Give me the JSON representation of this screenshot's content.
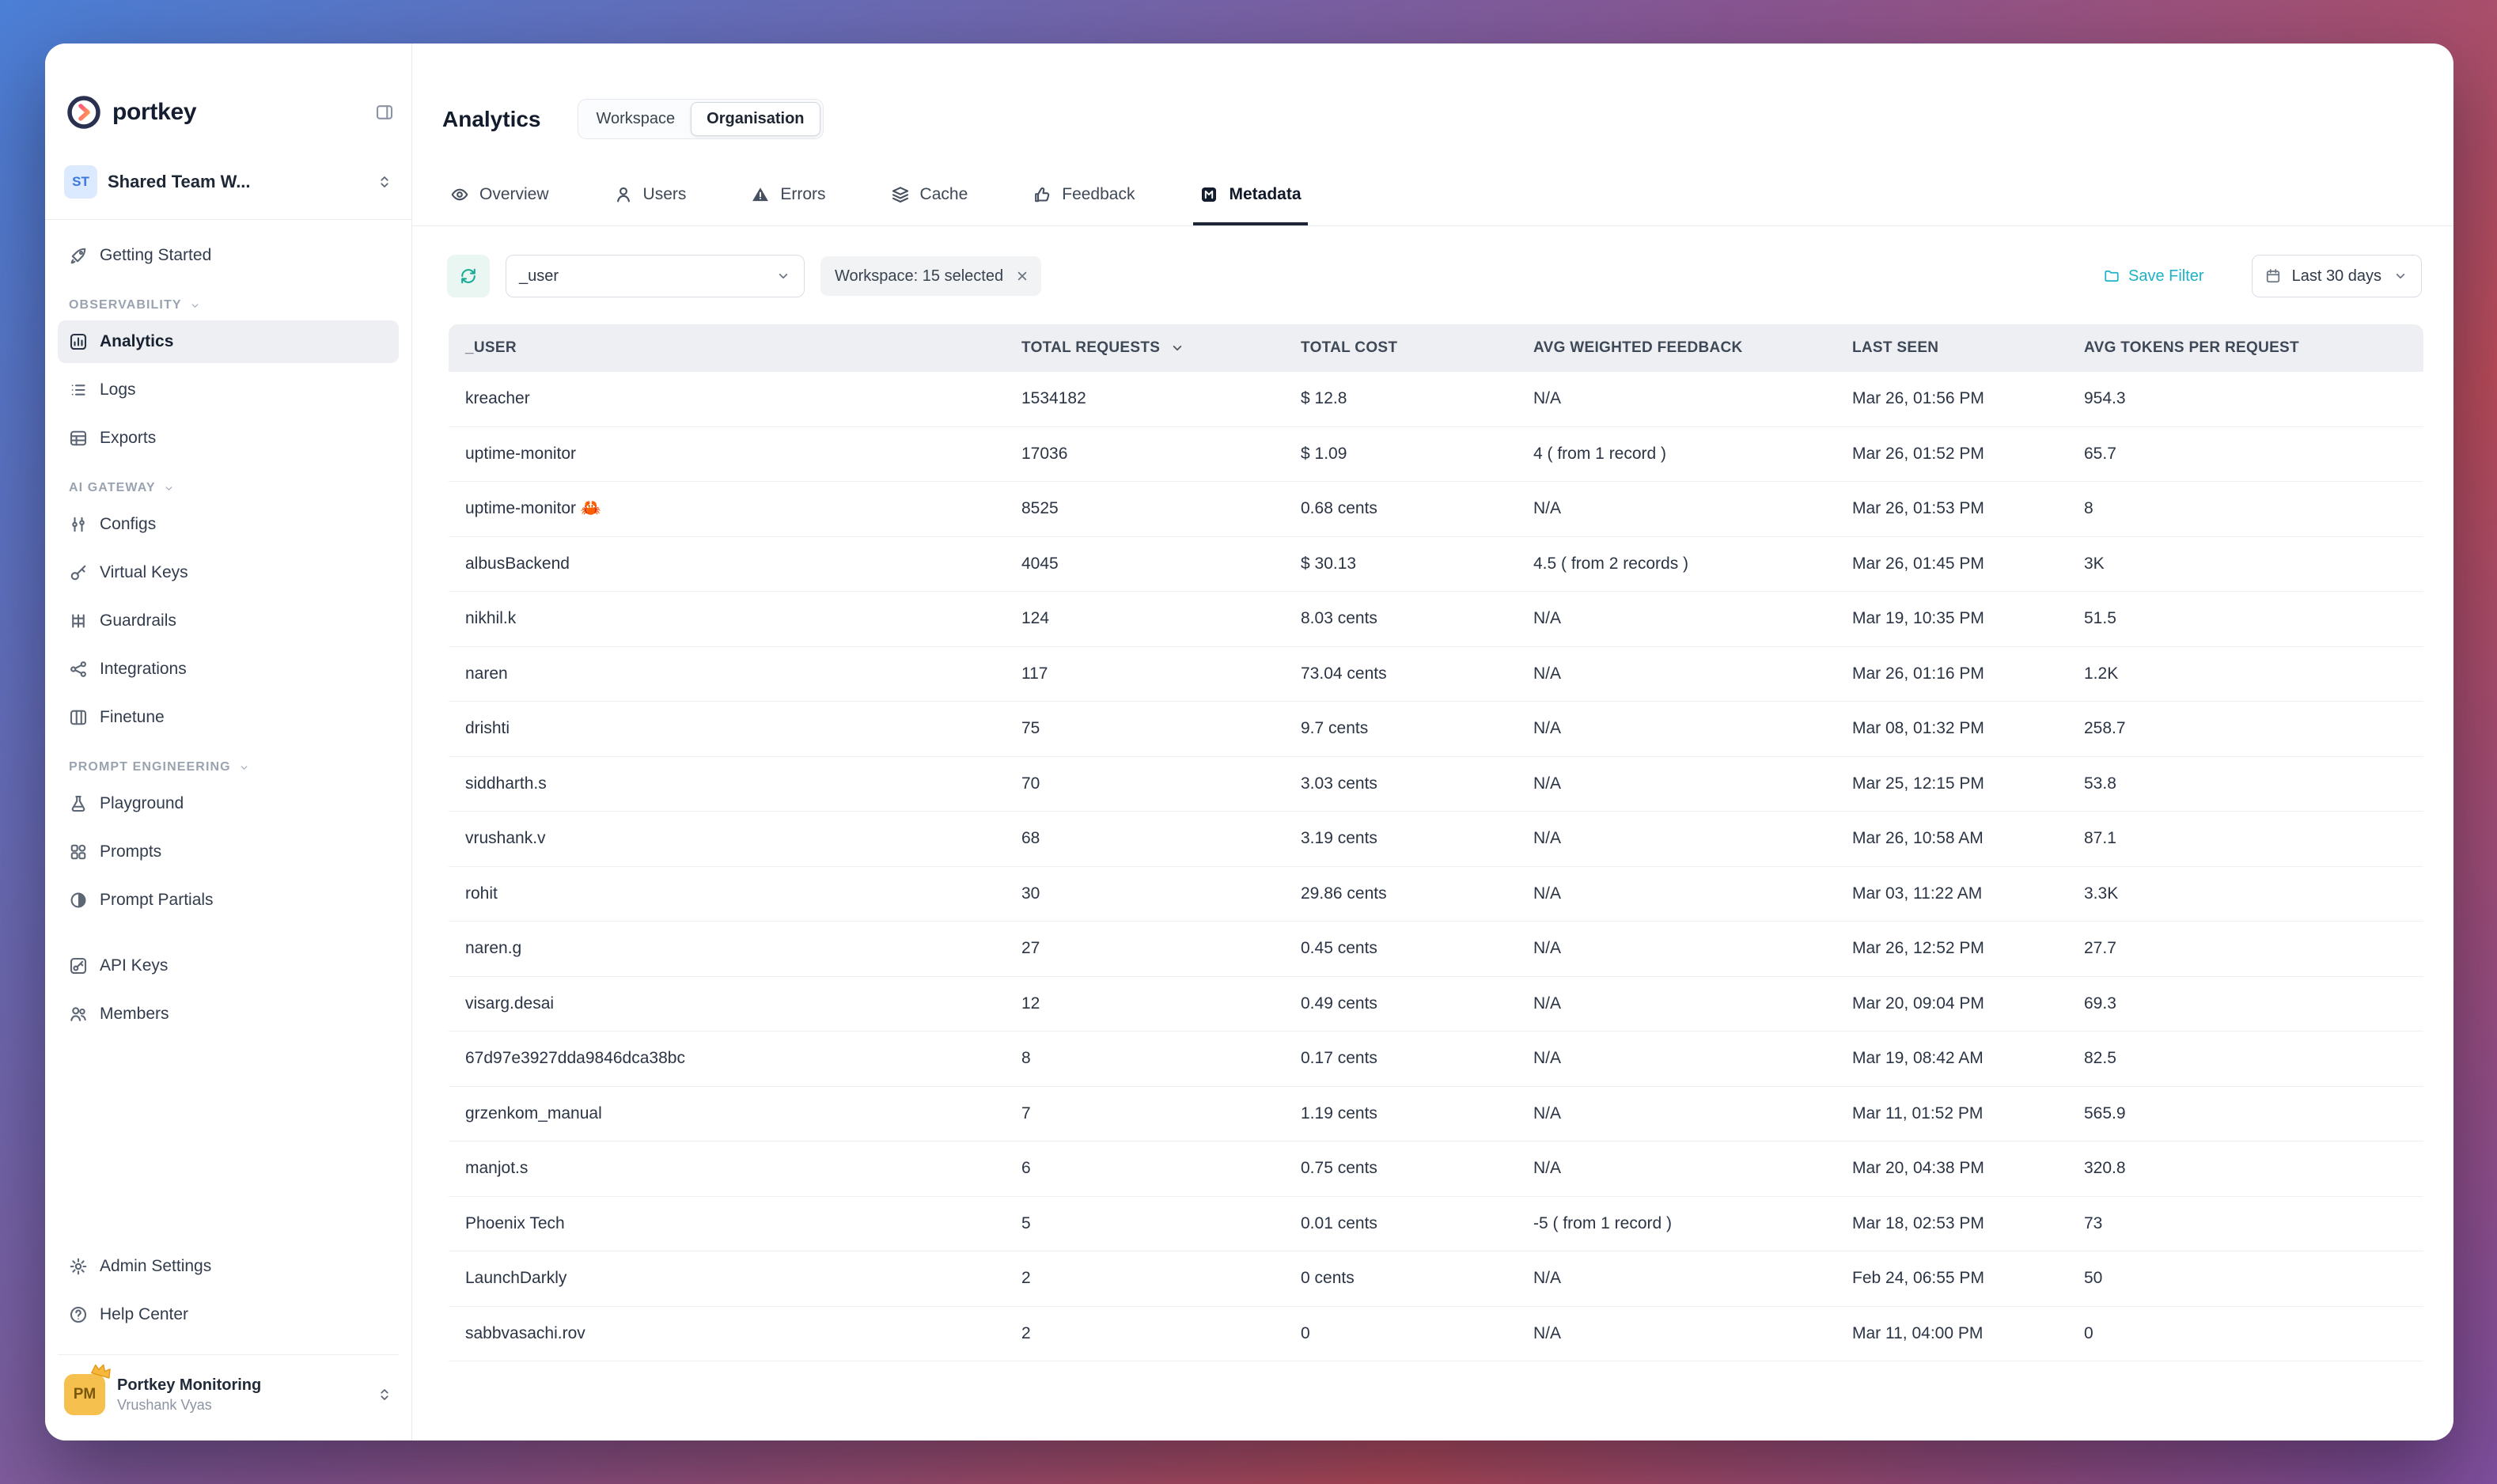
{
  "app": {
    "brand": "portkey",
    "workspace": {
      "initials": "ST",
      "name": "Shared Team W..."
    },
    "account": {
      "initials": "PM",
      "org": "Portkey Monitoring",
      "name": "Vrushank Vyas"
    }
  },
  "sidebar": {
    "sections": [
      {
        "header": null,
        "items": [
          {
            "label": "Getting Started",
            "icon": "rocket"
          }
        ]
      },
      {
        "header": "OBSERVABILITY",
        "items": [
          {
            "label": "Analytics",
            "icon": "bar-chart",
            "active": true
          },
          {
            "label": "Logs",
            "icon": "logs"
          },
          {
            "label": "Exports",
            "icon": "exports"
          }
        ]
      },
      {
        "header": "AI GATEWAY",
        "items": [
          {
            "label": "Configs",
            "icon": "sliders"
          },
          {
            "label": "Virtual Keys",
            "icon": "key"
          },
          {
            "label": "Guardrails",
            "icon": "guardrails"
          },
          {
            "label": "Integrations",
            "icon": "integrations"
          },
          {
            "label": "Finetune",
            "icon": "finetune"
          }
        ]
      },
      {
        "header": "PROMPT ENGINEERING",
        "items": [
          {
            "label": "Playground",
            "icon": "flask"
          },
          {
            "label": "Prompts",
            "icon": "grid"
          },
          {
            "label": "Prompt Partials",
            "icon": "half-circle"
          }
        ]
      },
      {
        "header": null,
        "gap": true,
        "items": [
          {
            "label": "API Keys",
            "icon": "api-key"
          },
          {
            "label": "Members",
            "icon": "members"
          }
        ]
      }
    ],
    "footer_items": [
      {
        "label": "Admin Settings",
        "icon": "gear"
      },
      {
        "label": "Help Center",
        "icon": "help-circle"
      }
    ]
  },
  "header": {
    "title": "Analytics",
    "scope_toggle": {
      "options": [
        "Workspace",
        "Organisation"
      ],
      "selected": "Organisation"
    }
  },
  "tabs": [
    {
      "label": "Overview",
      "icon": "eye"
    },
    {
      "label": "Users",
      "icon": "user"
    },
    {
      "label": "Errors",
      "icon": "warning"
    },
    {
      "label": "Cache",
      "icon": "layers"
    },
    {
      "label": "Feedback",
      "icon": "thumbs-up"
    },
    {
      "label": "Metadata",
      "icon": "metadata",
      "active": true
    }
  ],
  "filters": {
    "field_select": "_user",
    "workspace_chip": "Workspace: 15 selected",
    "save_filter_label": "Save Filter",
    "date_range": "Last 30 days"
  },
  "table": {
    "columns": [
      "_USER",
      "TOTAL REQUESTS",
      "TOTAL COST",
      "AVG WEIGHTED FEEDBACK",
      "LAST SEEN",
      "AVG TOKENS PER REQUEST"
    ],
    "sorted_column": "TOTAL REQUESTS",
    "rows": [
      [
        "kreacher",
        "1534182",
        "$ 12.8",
        "N/A",
        "Mar 26, 01:56 PM",
        "954.3"
      ],
      [
        "uptime-monitor",
        "17036",
        "$ 1.09",
        "4  ( from 1 record )",
        "Mar 26, 01:52 PM",
        "65.7"
      ],
      [
        "uptime-monitor 🦀",
        "8525",
        "0.68 cents",
        "N/A",
        "Mar 26, 01:53 PM",
        "8"
      ],
      [
        "albusBackend",
        "4045",
        "$ 30.13",
        "4.5  ( from 2 records )",
        "Mar 26, 01:45 PM",
        "3K"
      ],
      [
        "nikhil.k",
        "124",
        "8.03 cents",
        "N/A",
        "Mar 19, 10:35 PM",
        "51.5"
      ],
      [
        "naren",
        "117",
        "73.04 cents",
        "N/A",
        "Mar 26, 01:16 PM",
        "1.2K"
      ],
      [
        "drishti",
        "75",
        "9.7 cents",
        "N/A",
        "Mar 08, 01:32 PM",
        "258.7"
      ],
      [
        "siddharth.s",
        "70",
        "3.03 cents",
        "N/A",
        "Mar 25, 12:15 PM",
        "53.8"
      ],
      [
        "vrushank.v",
        "68",
        "3.19 cents",
        "N/A",
        "Mar 26, 10:58 AM",
        "87.1"
      ],
      [
        "rohit",
        "30",
        "29.86 cents",
        "N/A",
        "Mar 03, 11:22 AM",
        "3.3K"
      ],
      [
        "naren.g",
        "27",
        "0.45 cents",
        "N/A",
        "Mar 26, 12:52 PM",
        "27.7"
      ],
      [
        "visarg.desai",
        "12",
        "0.49 cents",
        "N/A",
        "Mar 20, 09:04 PM",
        "69.3"
      ],
      [
        "67d97e3927dda9846dca38bc",
        "8",
        "0.17 cents",
        "N/A",
        "Mar 19, 08:42 AM",
        "82.5"
      ],
      [
        "grzenkom_manual",
        "7",
        "1.19 cents",
        "N/A",
        "Mar 11, 01:52 PM",
        "565.9"
      ],
      [
        "manjot.s",
        "6",
        "0.75 cents",
        "N/A",
        "Mar 20, 04:38 PM",
        "320.8"
      ],
      [
        "Phoenix Tech",
        "5",
        "0.01 cents",
        "-5  ( from 1 record )",
        "Mar 18, 02:53 PM",
        "73"
      ],
      [
        "LaunchDarkly",
        "2",
        "0 cents",
        "N/A",
        "Feb 24, 06:55 PM",
        "50"
      ],
      [
        "sabbvasachi.rov",
        "2",
        "0",
        "N/A",
        "Mar 11, 04:00 PM",
        "0"
      ]
    ]
  },
  "colors": {
    "accent_teal": "#17ab96",
    "save_filter_cyan": "#1eb2c6",
    "active_tab": "#1c2636",
    "table_header_bg": "#edeff2"
  }
}
